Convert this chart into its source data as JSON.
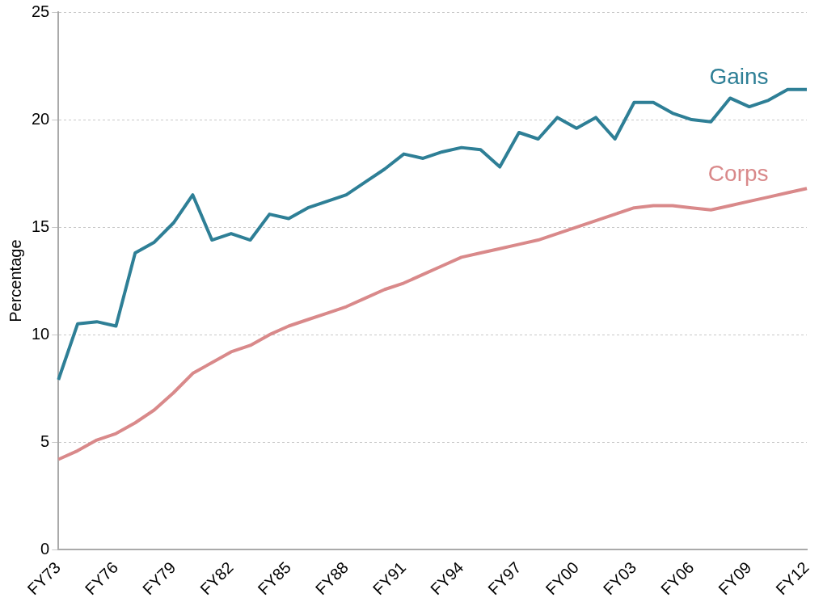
{
  "chart_data": {
    "type": "line",
    "ylabel": "Percentage",
    "categories": [
      "FY73",
      null,
      null,
      "FY76",
      null,
      null,
      "FY79",
      null,
      null,
      "FY82",
      null,
      null,
      "FY85",
      null,
      null,
      "FY88",
      null,
      null,
      "FY91",
      null,
      null,
      "FY94",
      null,
      null,
      "FY97",
      null,
      null,
      "FY00",
      null,
      null,
      "FY03",
      null,
      null,
      "FY06",
      null,
      null,
      "FY09",
      null,
      null,
      "FY12"
    ],
    "series": [
      {
        "name": "Gains",
        "color": "#2e7f96",
        "values": [
          7.9,
          10.5,
          10.6,
          10.4,
          13.8,
          14.3,
          15.2,
          16.5,
          14.4,
          14.7,
          14.4,
          15.6,
          15.4,
          15.9,
          16.2,
          16.5,
          17.1,
          17.7,
          18.4,
          18.2,
          18.5,
          18.7,
          18.6,
          17.8,
          19.4,
          19.1,
          20.1,
          19.6,
          20.1,
          19.1,
          20.8,
          20.8,
          20.3,
          20.0,
          19.9,
          21.0,
          20.6,
          20.9,
          21.4,
          21.4
        ]
      },
      {
        "name": "Corps",
        "color": "#d9898a",
        "values": [
          4.2,
          4.6,
          5.1,
          5.4,
          5.9,
          6.5,
          7.3,
          8.2,
          8.7,
          9.2,
          9.5,
          10.0,
          10.4,
          10.7,
          11.0,
          11.3,
          11.7,
          12.1,
          12.4,
          12.8,
          13.2,
          13.6,
          13.8,
          14.0,
          14.2,
          14.4,
          14.7,
          15.0,
          15.3,
          15.6,
          15.9,
          16.0,
          16.0,
          15.9,
          15.8,
          16.0,
          16.2,
          16.4,
          16.6,
          16.8
        ]
      }
    ],
    "ylim": [
      0,
      25
    ],
    "yticks": [
      0,
      5,
      10,
      15,
      20,
      25
    ],
    "grid": "y",
    "legend": false,
    "marker": "none",
    "line_style": "solid"
  }
}
